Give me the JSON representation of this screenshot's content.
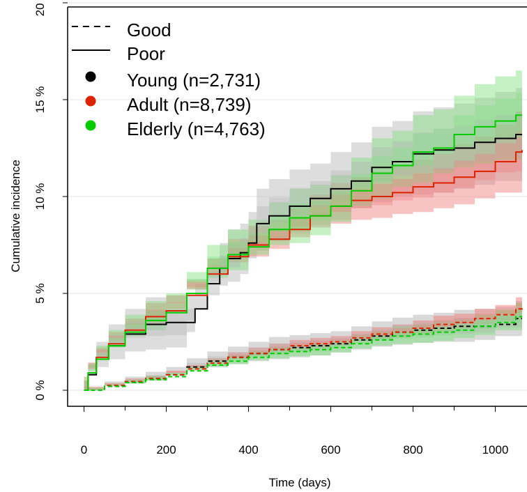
{
  "chart_data": {
    "type": "line",
    "title": "",
    "xlabel": "Time (days)",
    "ylabel": "Cumulative incidence",
    "xlim": [
      -40,
      1080
    ],
    "ylim": [
      -0.7,
      20.7
    ],
    "x_ticks": [
      0,
      200,
      400,
      600,
      800,
      1000
    ],
    "x_tick_labels": [
      "0",
      "200",
      "400",
      "600",
      "800",
      "1000"
    ],
    "y_ticks": [
      0,
      5,
      10,
      15,
      20
    ],
    "y_tick_labels": [
      "0 %",
      "5 %",
      "10 %",
      "15 %",
      "20 %"
    ],
    "grid": "horizontal",
    "legend_position": "top-left",
    "legend": {
      "line_styles": [
        {
          "label": "Good",
          "dash": "dashed"
        },
        {
          "label": "Poor",
          "dash": "solid"
        }
      ],
      "groups": [
        {
          "label": "Young (n=2,731)",
          "color": "#000000"
        },
        {
          "label": "Adult (n=8,739)",
          "color": "#dd2200"
        },
        {
          "label": "Elderly (n=4,763)",
          "color": "#00cc00"
        }
      ]
    },
    "band_colors": {
      "Young": "#b3b3b3",
      "Adult": "#f07a7a",
      "Elderly": "#7ee07e"
    },
    "series": [
      {
        "group": "Young",
        "status": "Poor",
        "color": "#000000",
        "dash": "solid",
        "x": [
          0,
          10,
          30,
          60,
          100,
          150,
          200,
          250,
          270,
          300,
          330,
          350,
          380,
          400,
          420,
          450,
          500,
          550,
          600,
          650,
          700,
          750,
          800,
          850,
          900,
          950,
          1000,
          1050,
          1065
        ],
        "y": [
          0,
          0.8,
          1.6,
          2.3,
          2.9,
          3.4,
          3.5,
          3.5,
          4.2,
          5.5,
          6.3,
          6.8,
          7.1,
          7.6,
          8.6,
          9.0,
          9.5,
          9.9,
          10.4,
          10.8,
          11.5,
          11.8,
          12.2,
          12.4,
          12.5,
          12.8,
          13.0,
          13.2,
          13.2
        ],
        "lower": [
          0,
          0.2,
          0.8,
          1.2,
          1.6,
          2.0,
          2.1,
          2.2,
          3.0,
          4.2,
          4.9,
          5.4,
          5.6,
          6.0,
          6.8,
          7.2,
          7.7,
          8.1,
          8.5,
          8.8,
          9.4,
          9.7,
          10.0,
          10.1,
          10.2,
          10.4,
          10.6,
          10.8,
          10.8
        ],
        "upper": [
          0,
          1.4,
          2.5,
          3.4,
          4.2,
          4.8,
          4.9,
          4.9,
          5.5,
          6.8,
          7.6,
          8.3,
          8.6,
          9.2,
          10.4,
          10.9,
          11.4,
          11.7,
          12.3,
          12.8,
          13.6,
          13.9,
          14.4,
          14.6,
          14.8,
          15.1,
          15.4,
          15.6,
          15.6
        ]
      },
      {
        "group": "Adult",
        "status": "Poor",
        "color": "#dd2200",
        "dash": "solid",
        "x": [
          0,
          10,
          30,
          60,
          100,
          150,
          200,
          250,
          300,
          350,
          400,
          450,
          500,
          550,
          600,
          650,
          700,
          750,
          800,
          850,
          900,
          950,
          1000,
          1050,
          1065
        ],
        "y": [
          0,
          0.9,
          1.7,
          2.4,
          3.1,
          3.8,
          4.1,
          4.9,
          6.0,
          6.9,
          7.5,
          7.8,
          8.3,
          9.0,
          9.5,
          9.8,
          10.0,
          10.2,
          10.5,
          10.7,
          11.0,
          11.3,
          11.8,
          12.3,
          12.4
        ],
        "lower": [
          0,
          0.5,
          1.2,
          1.8,
          2.5,
          3.1,
          3.4,
          4.2,
          5.2,
          6.0,
          6.6,
          6.9,
          7.3,
          7.9,
          8.4,
          8.6,
          8.8,
          8.9,
          9.1,
          9.2,
          9.4,
          9.6,
          9.9,
          10.2,
          10.2
        ],
        "upper": [
          0,
          1.3,
          2.2,
          3.0,
          3.7,
          4.5,
          4.9,
          5.7,
          6.8,
          7.8,
          8.5,
          8.8,
          9.4,
          10.1,
          10.7,
          11.0,
          11.3,
          11.6,
          11.9,
          12.2,
          12.7,
          13.1,
          13.7,
          14.4,
          14.6
        ]
      },
      {
        "group": "Elderly",
        "status": "Poor",
        "color": "#00cc00",
        "dash": "solid",
        "x": [
          0,
          10,
          30,
          60,
          100,
          150,
          200,
          250,
          300,
          350,
          400,
          450,
          500,
          550,
          600,
          650,
          700,
          750,
          800,
          850,
          900,
          950,
          1000,
          1050,
          1065
        ],
        "y": [
          0,
          0.9,
          1.6,
          2.3,
          3.0,
          3.6,
          4.0,
          5.0,
          6.3,
          7.0,
          7.4,
          8.3,
          8.9,
          9.0,
          9.5,
          10.3,
          11.2,
          11.6,
          12.3,
          12.5,
          13.2,
          13.6,
          13.9,
          14.2,
          14.2
        ],
        "lower": [
          0,
          0.5,
          1.0,
          1.6,
          2.2,
          2.8,
          3.1,
          4.0,
          5.2,
          5.8,
          6.2,
          7.0,
          7.5,
          7.6,
          8.0,
          8.7,
          9.5,
          9.9,
          10.5,
          10.7,
          11.2,
          11.5,
          11.7,
          11.9,
          11.9
        ],
        "upper": [
          0,
          1.4,
          2.3,
          3.1,
          3.9,
          4.6,
          5.0,
          6.1,
          7.5,
          8.3,
          8.8,
          9.7,
          10.4,
          10.6,
          11.1,
          12.0,
          13.0,
          13.4,
          14.2,
          14.5,
          15.2,
          15.8,
          16.2,
          16.5,
          16.5
        ]
      },
      {
        "group": "Young",
        "status": "Good",
        "color": "#000000",
        "dash": "dashed",
        "x": [
          0,
          50,
          100,
          150,
          200,
          250,
          300,
          350,
          400,
          450,
          500,
          550,
          600,
          650,
          700,
          750,
          800,
          850,
          900,
          950,
          1000,
          1050,
          1065
        ],
        "y": [
          0,
          0.2,
          0.4,
          0.6,
          0.8,
          1.2,
          1.5,
          1.7,
          1.9,
          2.1,
          2.2,
          2.3,
          2.4,
          2.6,
          2.8,
          3.0,
          3.1,
          3.2,
          3.3,
          3.3,
          3.4,
          3.7,
          3.7
        ],
        "lower": [
          0,
          0.05,
          0.2,
          0.35,
          0.5,
          0.8,
          1.05,
          1.2,
          1.35,
          1.5,
          1.6,
          1.7,
          1.8,
          1.95,
          2.1,
          2.25,
          2.35,
          2.45,
          2.5,
          2.5,
          2.6,
          2.8,
          2.8
        ],
        "upper": [
          0,
          0.45,
          0.7,
          0.95,
          1.2,
          1.65,
          2.0,
          2.25,
          2.5,
          2.75,
          2.85,
          2.95,
          3.05,
          3.3,
          3.55,
          3.75,
          3.9,
          4.0,
          4.15,
          4.2,
          4.3,
          4.6,
          4.6
        ]
      },
      {
        "group": "Adult",
        "status": "Good",
        "color": "#dd2200",
        "dash": "dashed",
        "x": [
          0,
          50,
          100,
          150,
          200,
          250,
          300,
          350,
          400,
          450,
          500,
          550,
          600,
          650,
          700,
          750,
          800,
          850,
          900,
          950,
          1000,
          1050,
          1065
        ],
        "y": [
          0,
          0.25,
          0.45,
          0.6,
          0.8,
          1.1,
          1.4,
          1.7,
          1.9,
          2.1,
          2.3,
          2.4,
          2.5,
          2.7,
          2.9,
          3.0,
          3.2,
          3.4,
          3.5,
          3.7,
          3.9,
          4.2,
          4.3
        ],
        "lower": [
          0,
          0.15,
          0.3,
          0.45,
          0.6,
          0.9,
          1.15,
          1.45,
          1.6,
          1.8,
          2.0,
          2.1,
          2.2,
          2.35,
          2.55,
          2.65,
          2.8,
          2.95,
          3.05,
          3.2,
          3.4,
          3.6,
          3.7
        ],
        "upper": [
          0,
          0.35,
          0.6,
          0.75,
          1.0,
          1.3,
          1.65,
          1.95,
          2.2,
          2.4,
          2.6,
          2.7,
          2.8,
          3.05,
          3.25,
          3.4,
          3.6,
          3.85,
          3.95,
          4.2,
          4.4,
          4.8,
          4.9
        ]
      },
      {
        "group": "Elderly",
        "status": "Good",
        "color": "#00cc00",
        "dash": "dashed",
        "x": [
          0,
          50,
          100,
          150,
          200,
          250,
          300,
          350,
          400,
          450,
          500,
          550,
          600,
          650,
          700,
          750,
          800,
          850,
          900,
          950,
          1000,
          1050,
          1065
        ],
        "y": [
          0,
          0.2,
          0.4,
          0.55,
          0.7,
          1.0,
          1.3,
          1.5,
          1.7,
          1.9,
          2.0,
          2.1,
          2.2,
          2.4,
          2.6,
          2.8,
          2.9,
          3.0,
          3.1,
          3.3,
          3.5,
          3.8,
          3.8
        ],
        "lower": [
          0,
          0.1,
          0.25,
          0.35,
          0.5,
          0.75,
          1.0,
          1.2,
          1.35,
          1.55,
          1.65,
          1.75,
          1.8,
          1.95,
          2.15,
          2.3,
          2.4,
          2.45,
          2.55,
          2.7,
          2.85,
          3.1,
          3.1
        ],
        "upper": [
          0,
          0.3,
          0.55,
          0.75,
          0.9,
          1.25,
          1.6,
          1.8,
          2.05,
          2.25,
          2.35,
          2.45,
          2.6,
          2.85,
          3.05,
          3.3,
          3.4,
          3.55,
          3.65,
          3.9,
          4.15,
          4.5,
          4.5
        ]
      }
    ]
  }
}
